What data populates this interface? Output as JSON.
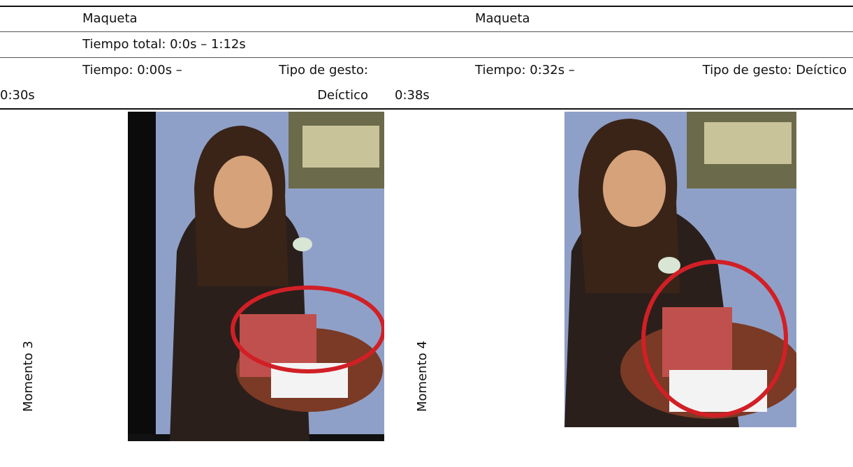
{
  "table": {
    "rows": [
      [
        "Maqueta",
        "Maqueta"
      ],
      [
        "Tiempo total: 0:0s – 1:12s"
      ],
      [
        "Tiempo: 0:00s – 0:30s",
        "Tipo de gesto: Deíctico",
        "Tiempo: 0:32s – 0:38s",
        "Tipo de gesto: Deíctico"
      ],
      [
        "Momento 3",
        "Momento 4"
      ]
    ]
  }
}
